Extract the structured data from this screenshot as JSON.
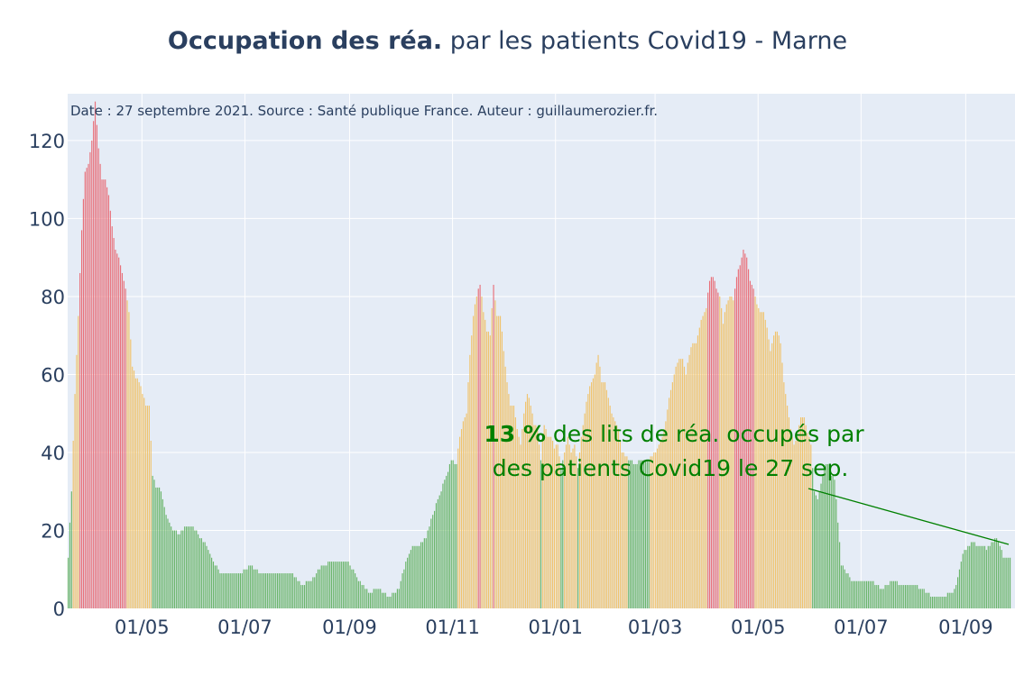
{
  "title": {
    "bold": "Occupation des réa.",
    "rest": " par les patients Covid19 - Marne"
  },
  "subtitle": "Date : 27 septembre 2021. Source : Santé publique France. Auteur : guillaumerozier.fr.",
  "annotation": {
    "value": "13  %",
    "line1_rest": " des lits de réa. occupés par",
    "line2": "des patients Covid19 le 27 sep."
  },
  "colors": {
    "green": "#6ab56a",
    "orange": "#f0c36d",
    "red": "#e8707a",
    "plot_bg": "#e5ecf6",
    "grid": "#ffffff",
    "text": "#2a3f5f",
    "annotation": "#008000"
  },
  "chart_data": {
    "type": "bar",
    "x_range": [
      "2020-03-18",
      "2021-09-27"
    ],
    "ylim": [
      0,
      132
    ],
    "yticks": [
      0,
      20,
      40,
      60,
      80,
      100,
      120
    ],
    "ytick_labels": [
      "0",
      "20",
      "40",
      "60",
      "80",
      "100",
      "120"
    ],
    "xticks": [
      "2020-05-01",
      "2020-07-01",
      "2020-09-01",
      "2020-11-01",
      "2021-01-01",
      "2021-03-01",
      "2021-05-01",
      "2021-07-01",
      "2021-09-01"
    ],
    "xtick_labels": [
      "01/05",
      "01/07",
      "01/09",
      "01/11",
      "01/01",
      "01/03",
      "01/05",
      "01/07",
      "01/09"
    ],
    "color_rule": "green < 40%, orange 40–80%, red > 80% of beds (by bar value: green ≤ 38, orange 39–80, red ≥ 81)",
    "points": [
      [
        "2020-03-18",
        13
      ],
      [
        "2020-03-20",
        30
      ],
      [
        "2020-03-22",
        55
      ],
      [
        "2020-03-24",
        75
      ],
      [
        "2020-03-26",
        97
      ],
      [
        "2020-03-28",
        112
      ],
      [
        "2020-03-30",
        114
      ],
      [
        "2020-04-01",
        120
      ],
      [
        "2020-04-03",
        130
      ],
      [
        "2020-04-05",
        118
      ],
      [
        "2020-04-07",
        110
      ],
      [
        "2020-04-09",
        110
      ],
      [
        "2020-04-11",
        106
      ],
      [
        "2020-04-13",
        98
      ],
      [
        "2020-04-15",
        92
      ],
      [
        "2020-04-17",
        90
      ],
      [
        "2020-04-19",
        86
      ],
      [
        "2020-04-21",
        82
      ],
      [
        "2020-04-23",
        76
      ],
      [
        "2020-04-25",
        62
      ],
      [
        "2020-04-27",
        59
      ],
      [
        "2020-04-29",
        58
      ],
      [
        "2020-05-01",
        55
      ],
      [
        "2020-05-03",
        52
      ],
      [
        "2020-05-05",
        52
      ],
      [
        "2020-05-07",
        34
      ],
      [
        "2020-05-09",
        31
      ],
      [
        "2020-05-11",
        31
      ],
      [
        "2020-05-13",
        28
      ],
      [
        "2020-05-15",
        24
      ],
      [
        "2020-05-19",
        20
      ],
      [
        "2020-05-23",
        19
      ],
      [
        "2020-05-27",
        21
      ],
      [
        "2020-05-31",
        21
      ],
      [
        "2020-06-04",
        18
      ],
      [
        "2020-06-08",
        16
      ],
      [
        "2020-06-12",
        12
      ],
      [
        "2020-06-16",
        9
      ],
      [
        "2020-06-22",
        9
      ],
      [
        "2020-06-28",
        9
      ],
      [
        "2020-07-04",
        11
      ],
      [
        "2020-07-10",
        9
      ],
      [
        "2020-07-20",
        9
      ],
      [
        "2020-07-28",
        9
      ],
      [
        "2020-08-03",
        6
      ],
      [
        "2020-08-09",
        7
      ],
      [
        "2020-08-15",
        11
      ],
      [
        "2020-08-23",
        12
      ],
      [
        "2020-08-31",
        12
      ],
      [
        "2020-09-06",
        7
      ],
      [
        "2020-09-12",
        4
      ],
      [
        "2020-09-18",
        5
      ],
      [
        "2020-09-24",
        3
      ],
      [
        "2020-09-30",
        5
      ],
      [
        "2020-10-04",
        12
      ],
      [
        "2020-10-08",
        16
      ],
      [
        "2020-10-12",
        16
      ],
      [
        "2020-10-16",
        18
      ],
      [
        "2020-10-20",
        24
      ],
      [
        "2020-10-24",
        29
      ],
      [
        "2020-10-28",
        34
      ],
      [
        "2020-10-31",
        38
      ],
      [
        "2020-11-03",
        37
      ],
      [
        "2020-11-05",
        44
      ],
      [
        "2020-11-07",
        48
      ],
      [
        "2020-11-09",
        50
      ],
      [
        "2020-11-11",
        65
      ],
      [
        "2020-11-13",
        75
      ],
      [
        "2020-11-15",
        80
      ],
      [
        "2020-11-17",
        83
      ],
      [
        "2020-11-19",
        76
      ],
      [
        "2020-11-21",
        71
      ],
      [
        "2020-11-23",
        70
      ],
      [
        "2020-11-25",
        83
      ],
      [
        "2020-11-27",
        75
      ],
      [
        "2020-11-29",
        75
      ],
      [
        "2020-12-01",
        66
      ],
      [
        "2020-12-03",
        58
      ],
      [
        "2020-12-05",
        52
      ],
      [
        "2020-12-07",
        52
      ],
      [
        "2020-12-09",
        46
      ],
      [
        "2020-12-11",
        42
      ],
      [
        "2020-12-13",
        50
      ],
      [
        "2020-12-15",
        55
      ],
      [
        "2020-12-17",
        52
      ],
      [
        "2020-12-19",
        47
      ],
      [
        "2020-12-21",
        46
      ],
      [
        "2020-12-23",
        38
      ],
      [
        "2020-12-25",
        47
      ],
      [
        "2020-12-27",
        44
      ],
      [
        "2020-12-29",
        44
      ],
      [
        "2020-12-31",
        41
      ],
      [
        "2021-01-02",
        42
      ],
      [
        "2021-01-04",
        36
      ],
      [
        "2021-01-06",
        40
      ],
      [
        "2021-01-08",
        44
      ],
      [
        "2021-01-10",
        40
      ],
      [
        "2021-01-12",
        42
      ],
      [
        "2021-01-14",
        36
      ],
      [
        "2021-01-16",
        44
      ],
      [
        "2021-01-18",
        50
      ],
      [
        "2021-01-20",
        55
      ],
      [
        "2021-01-22",
        58
      ],
      [
        "2021-01-24",
        60
      ],
      [
        "2021-01-26",
        65
      ],
      [
        "2021-01-28",
        58
      ],
      [
        "2021-01-30",
        58
      ],
      [
        "2021-02-01",
        54
      ],
      [
        "2021-02-03",
        50
      ],
      [
        "2021-02-05",
        48
      ],
      [
        "2021-02-07",
        46
      ],
      [
        "2021-02-09",
        40
      ],
      [
        "2021-02-13",
        38
      ],
      [
        "2021-02-17",
        37
      ],
      [
        "2021-02-21",
        38
      ],
      [
        "2021-02-25",
        38
      ],
      [
        "2021-03-01",
        40
      ],
      [
        "2021-03-03",
        42
      ],
      [
        "2021-03-05",
        44
      ],
      [
        "2021-03-07",
        48
      ],
      [
        "2021-03-09",
        54
      ],
      [
        "2021-03-11",
        58
      ],
      [
        "2021-03-13",
        62
      ],
      [
        "2021-03-15",
        64
      ],
      [
        "2021-03-17",
        64
      ],
      [
        "2021-03-19",
        60
      ],
      [
        "2021-03-21",
        65
      ],
      [
        "2021-03-23",
        68
      ],
      [
        "2021-03-25",
        68
      ],
      [
        "2021-03-27",
        72
      ],
      [
        "2021-03-29",
        75
      ],
      [
        "2021-03-31",
        77
      ],
      [
        "2021-04-02",
        84
      ],
      [
        "2021-04-04",
        85
      ],
      [
        "2021-04-06",
        82
      ],
      [
        "2021-04-08",
        80
      ],
      [
        "2021-04-10",
        73
      ],
      [
        "2021-04-12",
        78
      ],
      [
        "2021-04-14",
        80
      ],
      [
        "2021-04-16",
        79
      ],
      [
        "2021-04-18",
        85
      ],
      [
        "2021-04-20",
        88
      ],
      [
        "2021-04-22",
        92
      ],
      [
        "2021-04-24",
        90
      ],
      [
        "2021-04-26",
        84
      ],
      [
        "2021-04-28",
        82
      ],
      [
        "2021-04-30",
        78
      ],
      [
        "2021-05-02",
        76
      ],
      [
        "2021-05-04",
        76
      ],
      [
        "2021-05-06",
        72
      ],
      [
        "2021-05-08",
        66
      ],
      [
        "2021-05-10",
        70
      ],
      [
        "2021-05-12",
        71
      ],
      [
        "2021-05-14",
        68
      ],
      [
        "2021-05-16",
        58
      ],
      [
        "2021-05-18",
        52
      ],
      [
        "2021-05-20",
        46
      ],
      [
        "2021-05-22",
        42
      ],
      [
        "2021-05-24",
        44
      ],
      [
        "2021-05-26",
        49
      ],
      [
        "2021-05-28",
        49
      ],
      [
        "2021-05-30",
        45
      ],
      [
        "2021-06-01",
        42
      ],
      [
        "2021-06-03",
        30
      ],
      [
        "2021-06-05",
        28
      ],
      [
        "2021-06-07",
        32
      ],
      [
        "2021-06-09",
        36
      ],
      [
        "2021-06-11",
        37
      ],
      [
        "2021-06-13",
        34
      ],
      [
        "2021-06-15",
        33
      ],
      [
        "2021-06-17",
        22
      ],
      [
        "2021-06-19",
        11
      ],
      [
        "2021-06-21",
        10
      ],
      [
        "2021-06-25",
        7
      ],
      [
        "2021-07-01",
        7
      ],
      [
        "2021-07-07",
        7
      ],
      [
        "2021-07-13",
        5
      ],
      [
        "2021-07-19",
        7
      ],
      [
        "2021-07-25",
        6
      ],
      [
        "2021-07-31",
        6
      ],
      [
        "2021-08-06",
        5
      ],
      [
        "2021-08-12",
        3
      ],
      [
        "2021-08-18",
        3
      ],
      [
        "2021-08-24",
        4
      ],
      [
        "2021-08-26",
        6
      ],
      [
        "2021-08-28",
        10
      ],
      [
        "2021-08-30",
        14
      ],
      [
        "2021-09-01",
        15
      ],
      [
        "2021-09-03",
        16
      ],
      [
        "2021-09-05",
        17
      ],
      [
        "2021-09-07",
        16
      ],
      [
        "2021-09-09",
        16
      ],
      [
        "2021-09-11",
        16
      ],
      [
        "2021-09-13",
        15
      ],
      [
        "2021-09-15",
        16
      ],
      [
        "2021-09-17",
        17
      ],
      [
        "2021-09-19",
        18
      ],
      [
        "2021-09-21",
        16
      ],
      [
        "2021-09-23",
        13
      ],
      [
        "2021-09-27",
        13
      ]
    ]
  }
}
